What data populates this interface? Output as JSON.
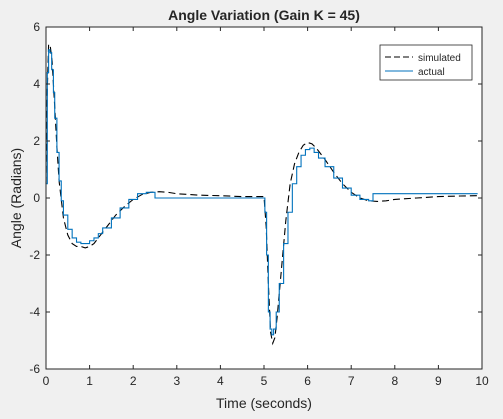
{
  "chart_data": {
    "type": "line",
    "title": "Angle Variation (Gain K = 45)",
    "xlabel": "Time (seconds)",
    "ylabel": "Angle (Radians)",
    "xlim": [
      0,
      10
    ],
    "ylim": [
      -6,
      6
    ],
    "xticks": [
      0,
      1,
      2,
      3,
      4,
      5,
      6,
      7,
      8,
      9,
      10
    ],
    "yticks": [
      -6,
      -4,
      -2,
      0,
      2,
      4,
      6
    ],
    "grid": false,
    "legend_position": "top-right",
    "series": [
      {
        "name": "simulated",
        "color": "#000000",
        "style": "dashed",
        "x": [
          0.0,
          0.03,
          0.06,
          0.1,
          0.14,
          0.2,
          0.25,
          0.3,
          0.4,
          0.5,
          0.6,
          0.7,
          0.8,
          0.9,
          1.0,
          1.1,
          1.2,
          1.4,
          1.6,
          1.8,
          2.0,
          2.2,
          2.4,
          2.6,
          2.8,
          3.0,
          3.5,
          4.0,
          4.5,
          5.0,
          5.05,
          5.1,
          5.15,
          5.2,
          5.25,
          5.3,
          5.4,
          5.5,
          5.6,
          5.7,
          5.8,
          5.9,
          6.0,
          6.1,
          6.2,
          6.4,
          6.6,
          6.8,
          7.0,
          7.2,
          7.4,
          7.6,
          7.8,
          8.0,
          8.5,
          9.0,
          9.5,
          9.9
        ],
        "y": [
          0.5,
          3.8,
          5.4,
          5.3,
          4.8,
          3.2,
          1.8,
          0.6,
          -0.7,
          -1.3,
          -1.6,
          -1.7,
          -1.7,
          -1.75,
          -1.7,
          -1.6,
          -1.4,
          -1.0,
          -0.6,
          -0.3,
          -0.05,
          0.12,
          0.2,
          0.22,
          0.2,
          0.15,
          0.1,
          0.08,
          0.05,
          0.05,
          -1.0,
          -3.0,
          -4.7,
          -5.1,
          -4.9,
          -4.2,
          -2.5,
          -0.8,
          0.5,
          1.2,
          1.6,
          1.85,
          1.95,
          1.9,
          1.75,
          1.35,
          0.9,
          0.5,
          0.2,
          0.0,
          -0.1,
          -0.12,
          -0.1,
          -0.05,
          0.0,
          0.05,
          0.07,
          0.08
        ]
      },
      {
        "name": "actual",
        "color": "#0072bd",
        "style": "stairs",
        "x": [
          0.0,
          0.03,
          0.06,
          0.09,
          0.13,
          0.17,
          0.2,
          0.25,
          0.3,
          0.35,
          0.4,
          0.5,
          0.6,
          0.7,
          0.8,
          0.9,
          1.0,
          1.1,
          1.2,
          1.3,
          1.5,
          1.7,
          1.9,
          2.1,
          2.3,
          2.5,
          2.7,
          3.0,
          4.0,
          5.0,
          5.02,
          5.06,
          5.1,
          5.14,
          5.18,
          5.22,
          5.28,
          5.35,
          5.45,
          5.55,
          5.65,
          5.75,
          5.85,
          5.95,
          6.05,
          6.15,
          6.25,
          6.4,
          6.6,
          6.8,
          7.0,
          7.2,
          7.4,
          7.5,
          7.6,
          8.0,
          9.0,
          9.9
        ],
        "y": [
          0.5,
          4.4,
          5.2,
          5.1,
          4.5,
          3.7,
          2.8,
          1.6,
          0.6,
          -0.1,
          -0.6,
          -1.1,
          -1.4,
          -1.55,
          -1.6,
          -1.6,
          -1.5,
          -1.4,
          -1.25,
          -1.05,
          -0.7,
          -0.35,
          -0.05,
          0.15,
          0.2,
          0.0,
          0.0,
          0.0,
          0.0,
          0.0,
          -0.5,
          -2.0,
          -4.0,
          -4.6,
          -4.8,
          -4.6,
          -4.0,
          -3.0,
          -1.6,
          -0.5,
          0.5,
          1.1,
          1.5,
          1.7,
          1.75,
          1.6,
          1.4,
          1.1,
          0.7,
          0.35,
          0.1,
          -0.05,
          -0.1,
          0.15,
          0.15,
          0.15,
          0.15,
          0.15
        ]
      }
    ]
  }
}
